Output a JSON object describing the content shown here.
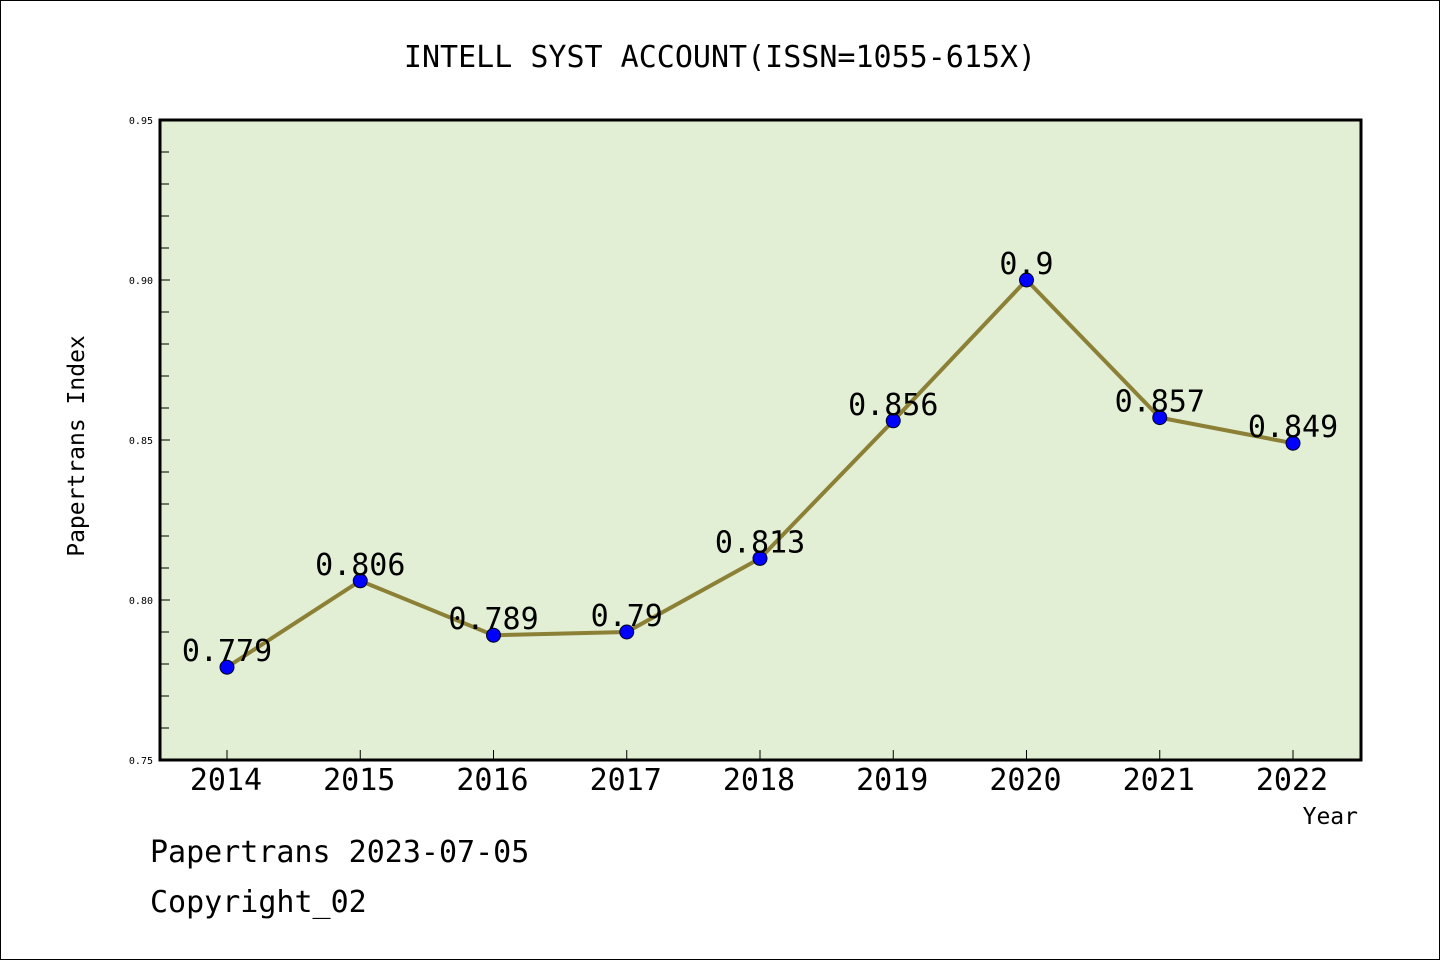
{
  "chart_data": {
    "type": "line",
    "title": "INTELL SYST ACCOUNT(ISSN=1055-615X)",
    "xlabel": "Year",
    "ylabel": "Papertrans Index",
    "categories": [
      "2014",
      "2015",
      "2016",
      "2017",
      "2018",
      "2019",
      "2020",
      "2021",
      "2022"
    ],
    "series": [
      {
        "values": [
          0.779,
          0.806,
          0.789,
          0.79,
          0.813,
          0.856,
          0.9,
          0.857,
          0.849
        ],
        "labels": [
          "0.779",
          "0.806",
          "0.789",
          "0.79",
          "0.813",
          "0.856",
          "0.9",
          "0.857",
          "0.849"
        ]
      }
    ],
    "ylim": [
      0.75,
      0.95
    ],
    "yticks": [
      "0.75",
      "0.80",
      "0.85",
      "0.90",
      "0.95"
    ],
    "grid": false,
    "colors": {
      "plot_background": "#e2efd4",
      "line": "#8b8035",
      "marker": "#0000ff"
    }
  },
  "footer": {
    "line1": "Papertrans 2023-07-05",
    "line2": "Copyright_02"
  }
}
